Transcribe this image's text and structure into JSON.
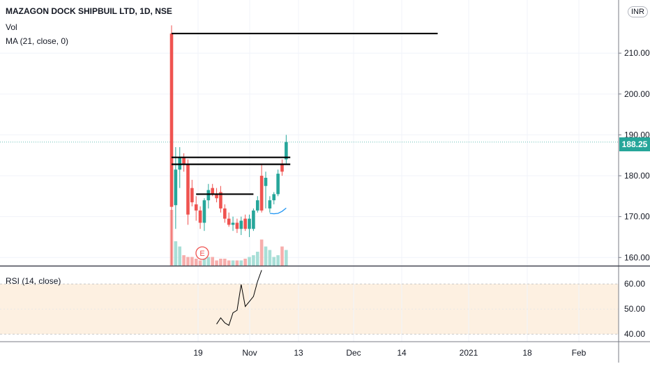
{
  "header": {
    "symbol": "MAZAGON DOCK SHIPBUIL LTD, 1D, NSE",
    "vol_label": "Vol",
    "ma_label": "MA (21, close, 0)",
    "rsi_label": "RSI (14, close)",
    "currency": "INR"
  },
  "last_price": "188.25",
  "earnings_marker": "E",
  "colors": {
    "up": "#26a69a",
    "down": "#ef5350",
    "ma": "#2196f3",
    "rsi_band": "#fdf0e1",
    "levels": "#000000",
    "rsi_line": "#000000"
  },
  "chart_data": [
    {
      "type": "candlestick",
      "title": "MAZAGON DOCK SHIPBUIL LTD, 1D, NSE",
      "ylim": [
        158,
        223
      ],
      "y_ticks": [
        "160.00",
        "170.00",
        "180.00",
        "190.00",
        "200.00",
        "210.00"
      ],
      "x_ticks": [
        "19",
        "Nov",
        "13",
        "Dec",
        "14",
        "2021",
        "18",
        "Feb"
      ],
      "candles": [
        {
          "o": 214.8,
          "h": 216.8,
          "l": 158.2,
          "c": 172.4
        },
        {
          "o": 172.8,
          "h": 187.0,
          "l": 167.0,
          "c": 181.5
        },
        {
          "o": 181.5,
          "h": 187.0,
          "l": 177.0,
          "c": 184.5
        },
        {
          "o": 184.5,
          "h": 185.5,
          "l": 181.0,
          "c": 183.0
        },
        {
          "o": 182.7,
          "h": 184.0,
          "l": 168.0,
          "c": 170.5
        },
        {
          "o": 177.0,
          "h": 179.0,
          "l": 172.5,
          "c": 173.5
        },
        {
          "o": 173.0,
          "h": 175.0,
          "l": 169.0,
          "c": 171.5
        },
        {
          "o": 171.5,
          "h": 172.5,
          "l": 167.0,
          "c": 168.5
        },
        {
          "o": 168.5,
          "h": 174.5,
          "l": 166.5,
          "c": 174.0
        },
        {
          "o": 174.0,
          "h": 178.0,
          "l": 172.0,
          "c": 176.5
        },
        {
          "o": 177.0,
          "h": 178.0,
          "l": 175.0,
          "c": 175.5
        },
        {
          "o": 175.5,
          "h": 177.0,
          "l": 173.5,
          "c": 174.5
        },
        {
          "o": 176.0,
          "h": 177.5,
          "l": 171.0,
          "c": 172.0
        },
        {
          "o": 172.0,
          "h": 173.0,
          "l": 168.5,
          "c": 169.5
        },
        {
          "o": 169.5,
          "h": 171.0,
          "l": 167.5,
          "c": 168.0
        },
        {
          "o": 168.0,
          "h": 170.0,
          "l": 166.5,
          "c": 168.5
        },
        {
          "o": 168.5,
          "h": 169.5,
          "l": 166.0,
          "c": 167.0
        },
        {
          "o": 167.0,
          "h": 170.0,
          "l": 165.5,
          "c": 169.0
        },
        {
          "o": 169.5,
          "h": 170.5,
          "l": 166.5,
          "c": 167.0
        },
        {
          "o": 167.0,
          "h": 170.5,
          "l": 165.0,
          "c": 169.5
        },
        {
          "o": 167.0,
          "h": 172.0,
          "l": 166.5,
          "c": 171.5
        },
        {
          "o": 171.5,
          "h": 175.0,
          "l": 171.0,
          "c": 174.0
        },
        {
          "o": 180.0,
          "h": 183.0,
          "l": 171.0,
          "c": 171.5
        },
        {
          "o": 177.5,
          "h": 181.0,
          "l": 172.0,
          "c": 179.5
        },
        {
          "o": 172.0,
          "h": 175.0,
          "l": 171.0,
          "c": 174.0
        },
        {
          "o": 174.0,
          "h": 176.0,
          "l": 173.0,
          "c": 175.5
        },
        {
          "o": 175.5,
          "h": 181.5,
          "l": 175.0,
          "c": 180.5
        },
        {
          "o": 183.0,
          "h": 184.0,
          "l": 180.0,
          "c": 181.0
        },
        {
          "o": 184.0,
          "h": 190.0,
          "l": 183.0,
          "c": 188.25
        }
      ],
      "volume": [
        32,
        14,
        11,
        6,
        5,
        5,
        4,
        3,
        6,
        5,
        5,
        3,
        4,
        4,
        3,
        3,
        3,
        3,
        4,
        5,
        6,
        8,
        15,
        11,
        9,
        5,
        6,
        11,
        9
      ],
      "ma_21": [
        null,
        null,
        null,
        null,
        null,
        null,
        null,
        null,
        null,
        null,
        null,
        null,
        null,
        null,
        null,
        null,
        null,
        null,
        null,
        null,
        null,
        null,
        null,
        null,
        170.8,
        170.7,
        170.8,
        171.3,
        172.1
      ],
      "horizontal_levels": [
        {
          "y": 214.8,
          "from_index": 0,
          "to_index": 65
        },
        {
          "y": 184.5,
          "from_index": 0,
          "to_index": 29
        },
        {
          "y": 182.8,
          "from_index": 0,
          "to_index": 29
        },
        {
          "y": 175.5,
          "from_index": 6,
          "to_index": 20
        }
      ]
    },
    {
      "type": "line",
      "title": "RSI (14, close)",
      "ylim": [
        37,
        67
      ],
      "y_ticks": [
        "40.00",
        "50.00",
        "60.00"
      ],
      "band": [
        40,
        60
      ],
      "x_index_start": 11,
      "values": [
        44.0,
        46.5,
        44.5,
        43.5,
        48.5,
        49.5,
        59.8,
        51.0,
        53.0,
        55.0,
        61.0,
        65.5
      ]
    }
  ]
}
